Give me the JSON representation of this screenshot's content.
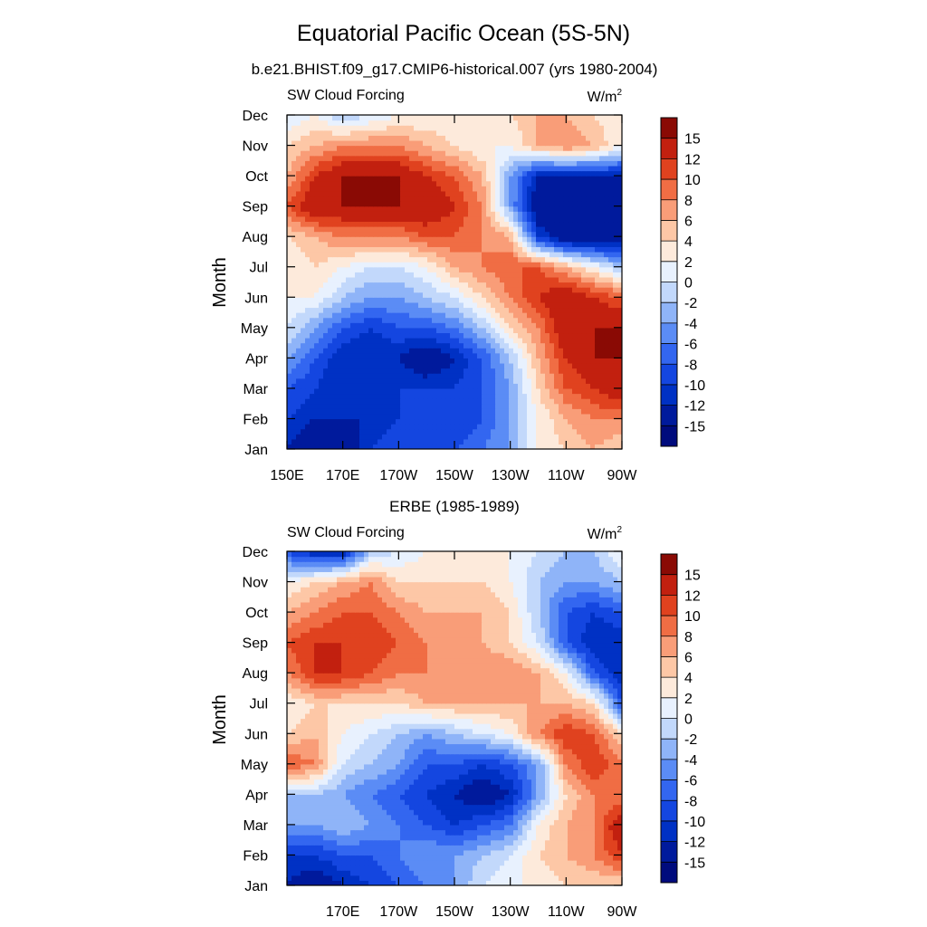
{
  "figure": {
    "title": "Equatorial Pacific Ocean (5S-5N)",
    "colorbar_levels": [
      "15",
      "12",
      "10",
      "8",
      "6",
      "4",
      "2",
      "0",
      "-2",
      "-4",
      "-6",
      "-8",
      "-10",
      "-12",
      "-15"
    ],
    "colors": {
      "scale": [
        "#000b7d",
        "#001a9c",
        "#0031c4",
        "#1446e0",
        "#3366f0",
        "#5b8cf5",
        "#8fb4f8",
        "#c2d8fb",
        "#e8f1fe",
        "#fdeadb",
        "#fdc7a6",
        "#f99d78",
        "#f06d44",
        "#e0421f",
        "#c2200f",
        "#8a0a04"
      ],
      "scale_bounds": [
        -17,
        -15,
        -12,
        -10,
        -8,
        -6,
        -4,
        -2,
        0,
        2,
        4,
        6,
        8,
        10,
        12,
        15,
        17
      ]
    }
  },
  "chart_data": [
    {
      "type": "heatmap",
      "title": "b.e21.BHIST.f09_g17.CMIP6-historical.007 (yrs 1980-2004)",
      "left_label": "SW Cloud Forcing",
      "units_label": "W/m",
      "units_sup": "2",
      "ylabel": "Month",
      "xlabel": "",
      "x_ticks": [
        "150E",
        "170E",
        "170W",
        "150W",
        "130W",
        "110W",
        "90W"
      ],
      "x_tick_values": [
        150,
        170,
        190,
        210,
        230,
        250,
        270
      ],
      "xlim": [
        150,
        270
      ],
      "y_ticks": [
        "Jan",
        "Feb",
        "Mar",
        "Apr",
        "May",
        "Jun",
        "Jul",
        "Aug",
        "Sep",
        "Oct",
        "Nov",
        "Dec"
      ],
      "ylim": [
        1,
        12
      ],
      "x": [
        150,
        160,
        170,
        180,
        190,
        200,
        210,
        220,
        230,
        240,
        250,
        260,
        270
      ],
      "values": [
        [
          -12,
          -15,
          -15,
          -10,
          -8,
          -8,
          -8,
          -6,
          -4,
          2,
          4,
          6,
          4
        ],
        [
          -10,
          -12,
          -12,
          -12,
          -10,
          -10,
          -10,
          -8,
          -4,
          2,
          6,
          8,
          8
        ],
        [
          -8,
          -10,
          -12,
          -12,
          -10,
          -10,
          -10,
          -8,
          -4,
          4,
          10,
          12,
          15
        ],
        [
          -4,
          -8,
          -12,
          -12,
          -12,
          -15,
          -12,
          -8,
          -2,
          6,
          12,
          15,
          15
        ],
        [
          0,
          -4,
          -8,
          -10,
          -8,
          -8,
          -6,
          -2,
          4,
          8,
          15,
          15,
          15
        ],
        [
          2,
          2,
          -2,
          -4,
          -4,
          -2,
          0,
          4,
          8,
          12,
          15,
          12,
          10
        ],
        [
          2,
          4,
          2,
          0,
          0,
          2,
          6,
          8,
          10,
          10,
          6,
          2,
          -2
        ],
        [
          4,
          6,
          8,
          8,
          8,
          10,
          10,
          8,
          6,
          -10,
          -15,
          -15,
          -15
        ],
        [
          10,
          15,
          15,
          15,
          15,
          15,
          12,
          8,
          -4,
          -15,
          -15,
          -15,
          -15
        ],
        [
          6,
          12,
          15,
          15,
          15,
          12,
          10,
          6,
          -4,
          -12,
          -12,
          -12,
          -12
        ],
        [
          4,
          6,
          8,
          8,
          8,
          6,
          4,
          2,
          2,
          6,
          8,
          6,
          2
        ],
        [
          0,
          2,
          -2,
          0,
          2,
          2,
          2,
          2,
          4,
          6,
          6,
          4,
          2
        ]
      ]
    },
    {
      "type": "heatmap",
      "title": "ERBE (1985-1989)",
      "left_label": "SW Cloud Forcing",
      "units_label": "W/m",
      "units_sup": "2",
      "ylabel": "Month",
      "xlabel": "",
      "x_ticks": [
        "",
        "170E",
        "170W",
        "150W",
        "130W",
        "110W",
        "90W"
      ],
      "x_tick_values": [
        150,
        170,
        190,
        210,
        230,
        250,
        270
      ],
      "xlim": [
        150,
        270
      ],
      "y_ticks": [
        "Jan",
        "Feb",
        "Mar",
        "Apr",
        "May",
        "Jun",
        "Jul",
        "Aug",
        "Sep",
        "Oct",
        "Nov",
        "Dec"
      ],
      "ylim": [
        1,
        12
      ],
      "x": [
        150,
        160,
        170,
        180,
        190,
        200,
        210,
        220,
        230,
        240,
        250,
        260,
        270
      ],
      "values": [
        [
          -12,
          -15,
          -12,
          -10,
          -8,
          -6,
          -4,
          0,
          2,
          2,
          4,
          4,
          4
        ],
        [
          -10,
          -10,
          -8,
          -8,
          -6,
          -4,
          -4,
          -2,
          0,
          4,
          6,
          8,
          12
        ],
        [
          -4,
          -4,
          -2,
          -4,
          -6,
          -8,
          -10,
          -8,
          -6,
          2,
          6,
          8,
          15
        ],
        [
          -2,
          -2,
          -4,
          -6,
          -8,
          -10,
          -12,
          -15,
          -12,
          -4,
          4,
          8,
          8
        ],
        [
          10,
          8,
          0,
          -2,
          -4,
          -8,
          -8,
          -10,
          -8,
          -4,
          8,
          12,
          8
        ],
        [
          4,
          6,
          2,
          0,
          -2,
          -4,
          -2,
          0,
          2,
          8,
          12,
          10,
          4
        ],
        [
          2,
          4,
          4,
          4,
          4,
          6,
          6,
          6,
          6,
          6,
          6,
          4,
          -8
        ],
        [
          8,
          12,
          12,
          10,
          8,
          8,
          8,
          8,
          8,
          6,
          2,
          -8,
          -12
        ],
        [
          10,
          12,
          12,
          12,
          10,
          8,
          6,
          6,
          4,
          0,
          -8,
          -12,
          -12
        ],
        [
          6,
          8,
          10,
          10,
          8,
          6,
          6,
          6,
          4,
          -2,
          -8,
          -10,
          -8
        ],
        [
          2,
          4,
          6,
          8,
          4,
          4,
          4,
          4,
          2,
          -2,
          -4,
          -4,
          -2
        ],
        [
          -8,
          -12,
          -12,
          -2,
          0,
          2,
          2,
          2,
          2,
          0,
          -2,
          -2,
          2
        ]
      ]
    }
  ]
}
